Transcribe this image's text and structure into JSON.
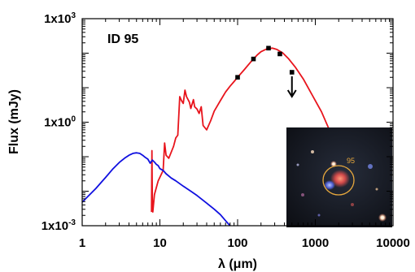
{
  "chart_data": {
    "type": "line",
    "annotation": "ID 95",
    "xlabel": "λ (μm)",
    "ylabel": "Flux (mJy)",
    "x_scale": "log",
    "y_scale": "log",
    "xlim": [
      1,
      10000
    ],
    "ylim": [
      0.001,
      1000
    ],
    "x_ticks": [
      {
        "value": 1,
        "label": "1"
      },
      {
        "value": 10,
        "label": "10"
      },
      {
        "value": 100,
        "label": "100"
      },
      {
        "value": 1000,
        "label": "1000"
      },
      {
        "value": 10000,
        "label": "10000"
      }
    ],
    "y_ticks": [
      {
        "value": 0.001,
        "label": "1x10",
        "exp": "-3"
      },
      {
        "value": 1,
        "label": "1x10",
        "exp": "0"
      },
      {
        "value": 1000,
        "label": "1x10",
        "exp": "3"
      }
    ],
    "series": [
      {
        "color": "#e8141c",
        "points": [
          [
            7.8,
            0.0025
          ],
          [
            7.9,
            0.15
          ],
          [
            8.0,
            0.0055
          ],
          [
            8.1,
            0.0025
          ],
          [
            8.5,
            0.008
          ],
          [
            9.5,
            0.02
          ],
          [
            11,
            0.04
          ],
          [
            11.5,
            0.25
          ],
          [
            12,
            0.11
          ],
          [
            13,
            0.09
          ],
          [
            15,
            0.2
          ],
          [
            16,
            0.35
          ],
          [
            17,
            0.42
          ],
          [
            18,
            5.5
          ],
          [
            19,
            4.2
          ],
          [
            20,
            3.5
          ],
          [
            21,
            8.5
          ],
          [
            22,
            5.5
          ],
          [
            24,
            3.8
          ],
          [
            25,
            2.5
          ],
          [
            27,
            4.5
          ],
          [
            28,
            2.8
          ],
          [
            30,
            2.4
          ],
          [
            32,
            1.8
          ],
          [
            34,
            2.8
          ],
          [
            36,
            0.8
          ],
          [
            40,
            0.6
          ],
          [
            45,
            1.1
          ],
          [
            50,
            2.1
          ],
          [
            60,
            4.2
          ],
          [
            70,
            7.5
          ],
          [
            80,
            11
          ],
          [
            90,
            15
          ],
          [
            100,
            20
          ],
          [
            120,
            32
          ],
          [
            150,
            58
          ],
          [
            180,
            90
          ],
          [
            200,
            110
          ],
          [
            240,
            135
          ],
          [
            280,
            140
          ],
          [
            320,
            128
          ],
          [
            380,
            102
          ],
          [
            450,
            70
          ],
          [
            550,
            40
          ],
          [
            700,
            18
          ],
          [
            900,
            6.5
          ],
          [
            1200,
            2.0
          ],
          [
            1600,
            0.45
          ],
          [
            2500,
            0.045
          ]
        ]
      },
      {
        "color": "#1010e0",
        "points": [
          [
            1.0,
            0.0048
          ],
          [
            1.5,
            0.012
          ],
          [
            2.0,
            0.025
          ],
          [
            2.5,
            0.045
          ],
          [
            3.0,
            0.068
          ],
          [
            3.5,
            0.09
          ],
          [
            4.0,
            0.11
          ],
          [
            4.5,
            0.125
          ],
          [
            5.0,
            0.13
          ],
          [
            5.5,
            0.125
          ],
          [
            6.0,
            0.11
          ],
          [
            6.5,
            0.095
          ],
          [
            7.0,
            0.085
          ],
          [
            7.5,
            0.065
          ],
          [
            8.0,
            0.08
          ],
          [
            8.5,
            0.07
          ],
          [
            9.0,
            0.06
          ],
          [
            9.5,
            0.055
          ],
          [
            10,
            0.045
          ],
          [
            11,
            0.04
          ],
          [
            12,
            0.032
          ],
          [
            14,
            0.024
          ],
          [
            16,
            0.02
          ],
          [
            20,
            0.014
          ],
          [
            25,
            0.01
          ],
          [
            30,
            0.0075
          ],
          [
            40,
            0.0045
          ],
          [
            50,
            0.003
          ],
          [
            60,
            0.0021
          ],
          [
            70,
            0.0014
          ],
          [
            80,
            0.001
          ]
        ]
      }
    ],
    "points": [
      {
        "x": 100,
        "y": 20
      },
      {
        "x": 160,
        "y": 68
      },
      {
        "x": 250,
        "y": 140
      },
      {
        "x": 350,
        "y": 95
      }
    ],
    "upper_limit": {
      "x": 500,
      "y": 28
    }
  },
  "inset": {
    "source_label": "95"
  }
}
